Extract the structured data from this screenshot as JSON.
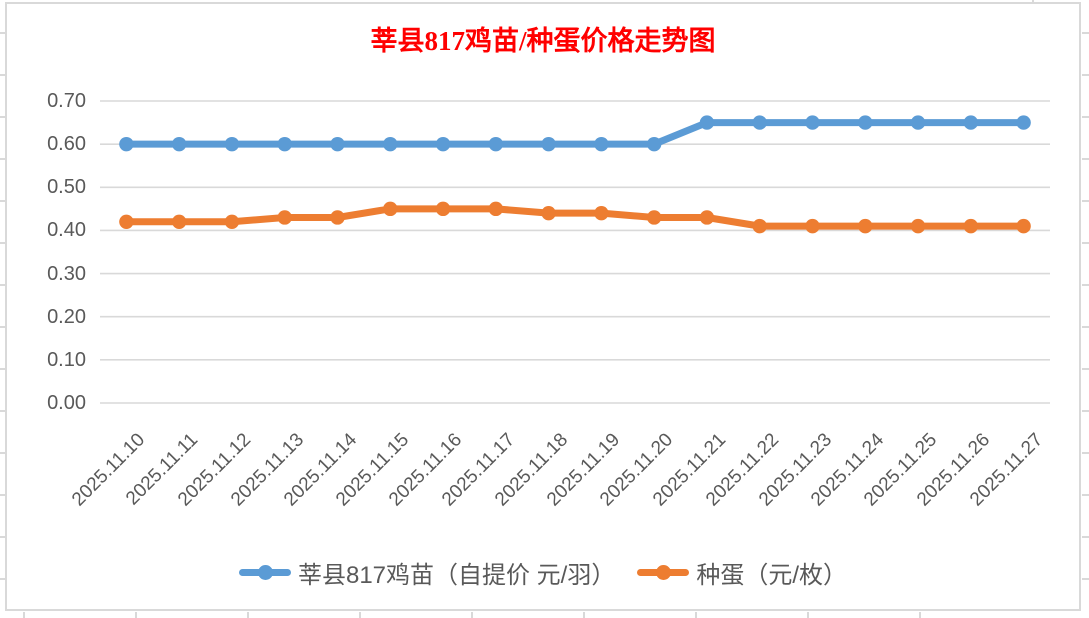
{
  "title": {
    "text": "莘县817鸡苗/种蛋价格走势图",
    "color": "#FF0000"
  },
  "colors": {
    "series_blue": "#5B9BD5",
    "series_orange": "#ED7D31",
    "gridline": "#D9D9D9",
    "axis_text": "#595959",
    "chart_border": "#D9D9D9",
    "background": "#FFFFFF"
  },
  "chart_data": {
    "type": "line",
    "title": "莘县817鸡苗/种蛋价格走势图",
    "categories": [
      "2025.11.10",
      "2025.11.11",
      "2025.11.12",
      "2025.11.13",
      "2025.11.14",
      "2025.11.15",
      "2025.11.16",
      "2025.11.17",
      "2025.11.18",
      "2025.11.19",
      "2025.11.20",
      "2025.11.21",
      "2025.11.22",
      "2025.11.23",
      "2025.11.24",
      "2025.11.25",
      "2025.11.26",
      "2025.11.27"
    ],
    "series": [
      {
        "name": "莘县817鸡苗（自提价 元/羽）",
        "color": "#5B9BD5",
        "values": [
          0.6,
          0.6,
          0.6,
          0.6,
          0.6,
          0.6,
          0.6,
          0.6,
          0.6,
          0.6,
          0.6,
          0.65,
          0.65,
          0.65,
          0.65,
          0.65,
          0.65,
          0.65
        ]
      },
      {
        "name": "种蛋（元/枚）",
        "color": "#ED7D31",
        "values": [
          0.42,
          0.42,
          0.42,
          0.43,
          0.43,
          0.45,
          0.45,
          0.45,
          0.44,
          0.44,
          0.43,
          0.43,
          0.41,
          0.41,
          0.41,
          0.41,
          0.41,
          0.41
        ]
      }
    ],
    "xlabel": "",
    "ylabel": "",
    "ylim": [
      0.0,
      0.7
    ],
    "ytick_step": 0.1,
    "ytick_labels": [
      "0.00",
      "0.10",
      "0.20",
      "0.30",
      "0.40",
      "0.50",
      "0.60",
      "0.70"
    ],
    "grid": true,
    "legend_position": "bottom"
  }
}
